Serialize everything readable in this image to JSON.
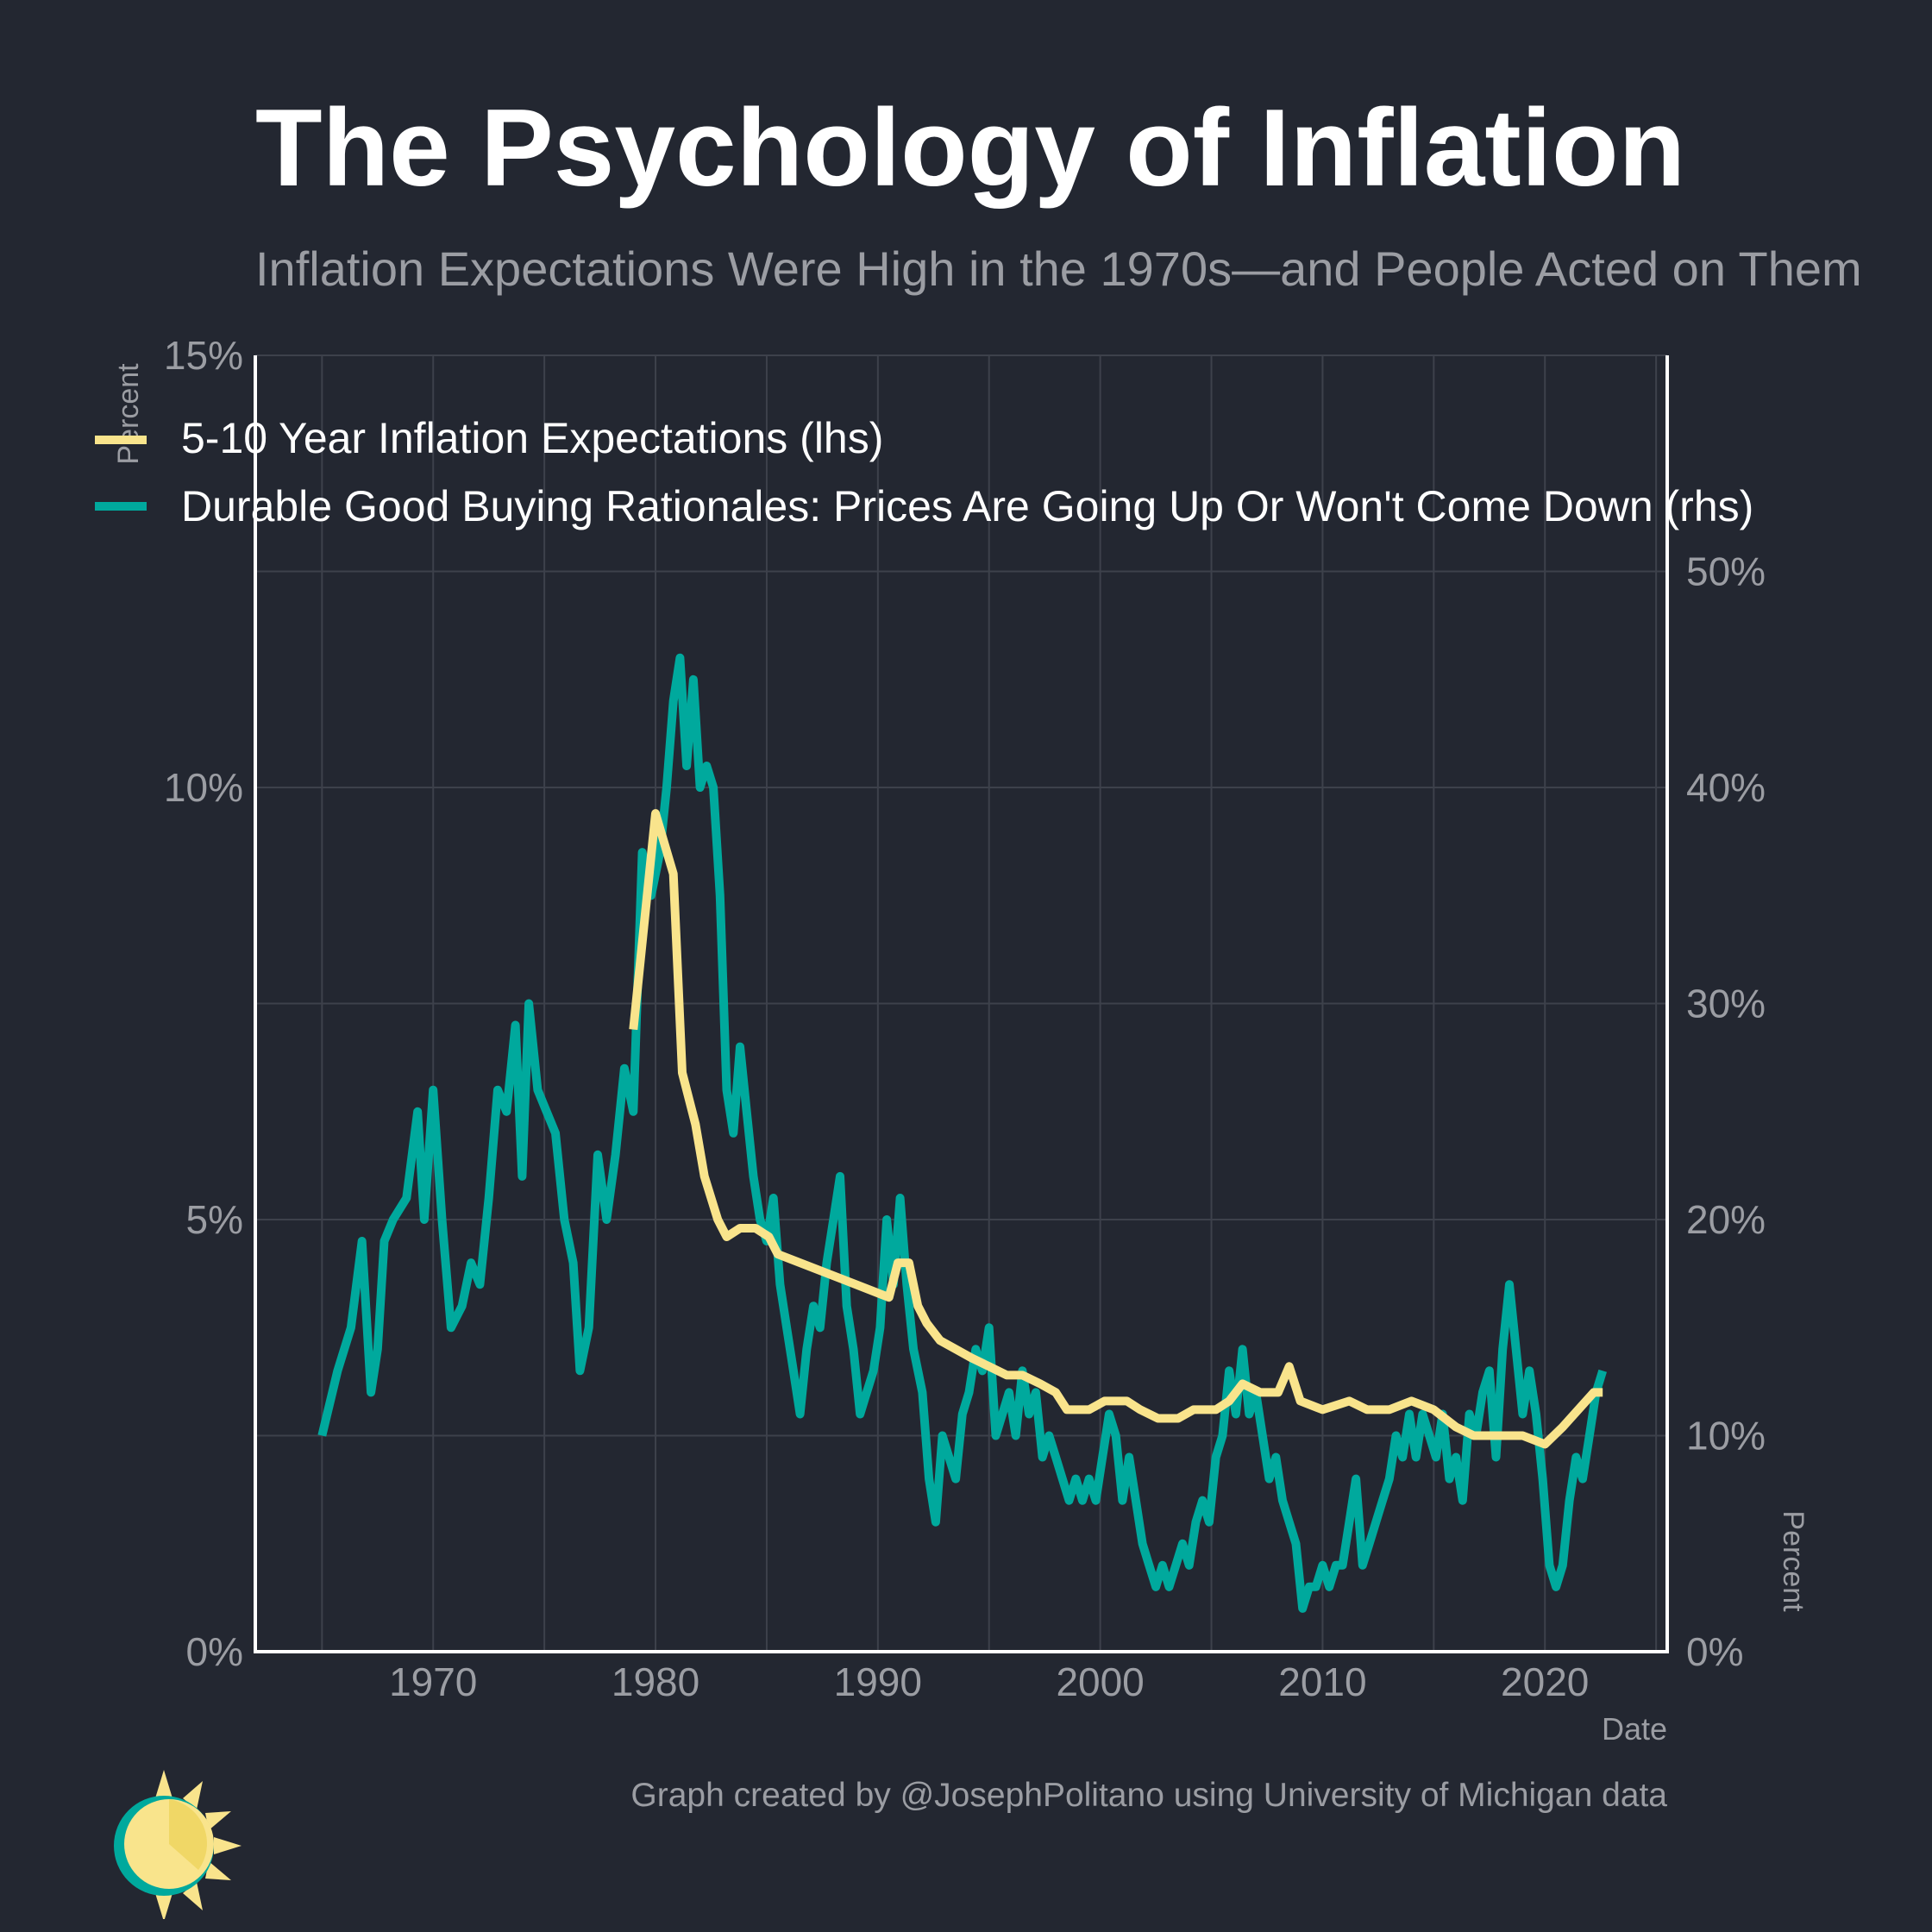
{
  "header": {
    "title": "The Psychology of Inflation",
    "subtitle": "Inflation Expectations Were High in the 1970s—and People Acted on Them"
  },
  "caption": "Graph created by @JosephPolitano using University of Michigan data",
  "colors": {
    "background": "#232731",
    "expectations": "#f9e48c",
    "durable": "#00a99d",
    "grid": "#3d414b",
    "axis": "#ffffff",
    "muted_text": "#9b9da3"
  },
  "chart_data": {
    "type": "line",
    "title": "The Psychology of Inflation",
    "subtitle": "Inflation Expectations Were High in the 1970s—and People Acted on Them",
    "xlabel": "Date",
    "ylabel_left": "Percent",
    "ylabel_right": "Percent",
    "xlim": [
      1962,
      2025.5
    ],
    "x_ticks": [
      1970,
      1980,
      1990,
      2000,
      2010,
      2020
    ],
    "y_left": {
      "lim": [
        0,
        15
      ],
      "ticks": [
        0,
        5,
        10,
        15
      ],
      "tick_labels": [
        "0%",
        "5%",
        "10%",
        "15%"
      ]
    },
    "y_right": {
      "lim": [
        0,
        60
      ],
      "ticks": [
        0,
        10,
        20,
        30,
        40,
        50
      ],
      "tick_labels": [
        "0%",
        "10%",
        "20%",
        "30%",
        "40%",
        "50%"
      ]
    },
    "grid": true,
    "legend_position": "top-left",
    "series": [
      {
        "name": "5-10 Year Inflation Expectations (lhs)",
        "axis": "left",
        "color": "#f9e48c",
        "points": [
          [
            1979.0,
            7.2
          ],
          [
            1980.0,
            9.7
          ],
          [
            1980.8,
            9.0
          ],
          [
            1981.2,
            6.7
          ],
          [
            1981.8,
            6.1
          ],
          [
            1982.2,
            5.5
          ],
          [
            1982.8,
            5.0
          ],
          [
            1983.2,
            4.8
          ],
          [
            1983.8,
            4.9
          ],
          [
            1984.5,
            4.9
          ],
          [
            1985.1,
            4.8
          ],
          [
            1985.5,
            4.6
          ],
          [
            1986.5,
            4.5
          ],
          [
            1988.5,
            4.3
          ],
          [
            1990.5,
            4.1
          ],
          [
            1990.9,
            4.5
          ],
          [
            1991.4,
            4.5
          ],
          [
            1991.8,
            4.0
          ],
          [
            1992.2,
            3.8
          ],
          [
            1992.8,
            3.6
          ],
          [
            1993.5,
            3.5
          ],
          [
            1994.2,
            3.4
          ],
          [
            1995.0,
            3.3
          ],
          [
            1995.8,
            3.2
          ],
          [
            1996.5,
            3.2
          ],
          [
            1997.3,
            3.1
          ],
          [
            1998.0,
            3.0
          ],
          [
            1998.5,
            2.8
          ],
          [
            1999.5,
            2.8
          ],
          [
            2000.2,
            2.9
          ],
          [
            2001.2,
            2.9
          ],
          [
            2001.8,
            2.8
          ],
          [
            2002.6,
            2.7
          ],
          [
            2003.5,
            2.7
          ],
          [
            2004.2,
            2.8
          ],
          [
            2005.2,
            2.8
          ],
          [
            2005.8,
            2.9
          ],
          [
            2006.4,
            3.1
          ],
          [
            2007.2,
            3.0
          ],
          [
            2008.0,
            3.0
          ],
          [
            2008.5,
            3.3
          ],
          [
            2009.0,
            2.9
          ],
          [
            2010.0,
            2.8
          ],
          [
            2011.2,
            2.9
          ],
          [
            2012.0,
            2.8
          ],
          [
            2013.0,
            2.8
          ],
          [
            2014.0,
            2.9
          ],
          [
            2015.0,
            2.8
          ],
          [
            2016.0,
            2.6
          ],
          [
            2016.8,
            2.5
          ],
          [
            2018.0,
            2.5
          ],
          [
            2019.0,
            2.5
          ],
          [
            2020.0,
            2.4
          ],
          [
            2020.8,
            2.6
          ],
          [
            2021.5,
            2.8
          ],
          [
            2022.2,
            3.0
          ],
          [
            2022.6,
            3.0
          ]
        ]
      },
      {
        "name": "Durable Good Buying Rationales: Prices Are Going Up Or Won't Come Down (rhs)",
        "axis": "right",
        "color": "#00a99d",
        "points": [
          [
            1965.0,
            10
          ],
          [
            1965.7,
            13
          ],
          [
            1966.3,
            15
          ],
          [
            1966.8,
            19
          ],
          [
            1967.2,
            12
          ],
          [
            1967.5,
            14
          ],
          [
            1967.8,
            19
          ],
          [
            1968.2,
            20
          ],
          [
            1968.8,
            21
          ],
          [
            1969.3,
            25
          ],
          [
            1969.6,
            20
          ],
          [
            1970.0,
            26
          ],
          [
            1970.4,
            20
          ],
          [
            1970.8,
            15
          ],
          [
            1971.3,
            16
          ],
          [
            1971.7,
            18
          ],
          [
            1972.1,
            17
          ],
          [
            1972.5,
            21
          ],
          [
            1972.9,
            26
          ],
          [
            1973.3,
            25
          ],
          [
            1973.7,
            29
          ],
          [
            1974.0,
            22
          ],
          [
            1974.3,
            30
          ],
          [
            1974.7,
            26
          ],
          [
            1975.1,
            25
          ],
          [
            1975.5,
            24
          ],
          [
            1975.9,
            20
          ],
          [
            1976.3,
            18
          ],
          [
            1976.6,
            13
          ],
          [
            1977.0,
            15
          ],
          [
            1977.4,
            23
          ],
          [
            1977.8,
            20
          ],
          [
            1978.2,
            23
          ],
          [
            1978.6,
            27
          ],
          [
            1979.0,
            25
          ],
          [
            1979.4,
            37
          ],
          [
            1979.8,
            35
          ],
          [
            1980.2,
            37
          ],
          [
            1980.5,
            40
          ],
          [
            1980.8,
            44
          ],
          [
            1981.1,
            46
          ],
          [
            1981.4,
            41
          ],
          [
            1981.7,
            45
          ],
          [
            1982.0,
            40
          ],
          [
            1982.3,
            41
          ],
          [
            1982.6,
            40
          ],
          [
            1982.9,
            35
          ],
          [
            1983.2,
            26
          ],
          [
            1983.5,
            24
          ],
          [
            1983.8,
            28
          ],
          [
            1984.1,
            25
          ],
          [
            1984.4,
            22
          ],
          [
            1984.7,
            20
          ],
          [
            1985.0,
            19
          ],
          [
            1985.3,
            21
          ],
          [
            1985.6,
            17
          ],
          [
            1985.9,
            15
          ],
          [
            1986.2,
            13
          ],
          [
            1986.5,
            11
          ],
          [
            1986.8,
            14
          ],
          [
            1987.1,
            16
          ],
          [
            1987.4,
            15
          ],
          [
            1987.7,
            18
          ],
          [
            1988.0,
            20
          ],
          [
            1988.3,
            22
          ],
          [
            1988.6,
            16
          ],
          [
            1988.9,
            14
          ],
          [
            1989.2,
            11
          ],
          [
            1989.5,
            12
          ],
          [
            1989.8,
            13
          ],
          [
            1990.1,
            15
          ],
          [
            1990.4,
            20
          ],
          [
            1990.7,
            17
          ],
          [
            1991.0,
            21
          ],
          [
            1991.3,
            17
          ],
          [
            1991.6,
            14
          ],
          [
            1992.0,
            12
          ],
          [
            1992.3,
            8
          ],
          [
            1992.6,
            6
          ],
          [
            1992.9,
            10
          ],
          [
            1993.2,
            9
          ],
          [
            1993.5,
            8
          ],
          [
            1993.8,
            11
          ],
          [
            1994.1,
            12
          ],
          [
            1994.4,
            14
          ],
          [
            1994.7,
            13
          ],
          [
            1995.0,
            15
          ],
          [
            1995.3,
            10
          ],
          [
            1995.6,
            11
          ],
          [
            1995.9,
            12
          ],
          [
            1996.2,
            10
          ],
          [
            1996.5,
            13
          ],
          [
            1996.8,
            11
          ],
          [
            1997.1,
            12
          ],
          [
            1997.4,
            9
          ],
          [
            1997.7,
            10
          ],
          [
            1998.0,
            9
          ],
          [
            1998.3,
            8
          ],
          [
            1998.6,
            7
          ],
          [
            1998.9,
            8
          ],
          [
            1999.2,
            7
          ],
          [
            1999.5,
            8
          ],
          [
            1999.8,
            7
          ],
          [
            2000.1,
            9
          ],
          [
            2000.4,
            11
          ],
          [
            2000.7,
            10
          ],
          [
            2001.0,
            7
          ],
          [
            2001.3,
            9
          ],
          [
            2001.6,
            7
          ],
          [
            2001.9,
            5
          ],
          [
            2002.2,
            4
          ],
          [
            2002.5,
            3
          ],
          [
            2002.8,
            4
          ],
          [
            2003.1,
            3
          ],
          [
            2003.4,
            4
          ],
          [
            2003.7,
            5
          ],
          [
            2004.0,
            4
          ],
          [
            2004.3,
            6
          ],
          [
            2004.6,
            7
          ],
          [
            2004.9,
            6
          ],
          [
            2005.2,
            9
          ],
          [
            2005.5,
            10
          ],
          [
            2005.8,
            13
          ],
          [
            2006.1,
            11
          ],
          [
            2006.4,
            14
          ],
          [
            2006.7,
            11
          ],
          [
            2007.0,
            12
          ],
          [
            2007.3,
            10
          ],
          [
            2007.6,
            8
          ],
          [
            2007.9,
            9
          ],
          [
            2008.2,
            7
          ],
          [
            2008.5,
            6
          ],
          [
            2008.8,
            5
          ],
          [
            2009.1,
            2
          ],
          [
            2009.4,
            3
          ],
          [
            2009.7,
            3
          ],
          [
            2010.0,
            4
          ],
          [
            2010.3,
            3
          ],
          [
            2010.6,
            4
          ],
          [
            2010.9,
            4
          ],
          [
            2011.2,
            6
          ],
          [
            2011.5,
            8
          ],
          [
            2011.8,
            4
          ],
          [
            2012.1,
            5
          ],
          [
            2012.4,
            6
          ],
          [
            2012.7,
            7
          ],
          [
            2013.0,
            8
          ],
          [
            2013.3,
            10
          ],
          [
            2013.6,
            9
          ],
          [
            2013.9,
            11
          ],
          [
            2014.2,
            9
          ],
          [
            2014.5,
            11
          ],
          [
            2014.8,
            10
          ],
          [
            2015.1,
            9
          ],
          [
            2015.4,
            11
          ],
          [
            2015.7,
            8
          ],
          [
            2016.0,
            9
          ],
          [
            2016.3,
            7
          ],
          [
            2016.6,
            11
          ],
          [
            2016.9,
            10
          ],
          [
            2017.2,
            12
          ],
          [
            2017.5,
            13
          ],
          [
            2017.8,
            9
          ],
          [
            2018.1,
            14
          ],
          [
            2018.4,
            17
          ],
          [
            2018.7,
            14
          ],
          [
            2019.0,
            11
          ],
          [
            2019.3,
            13
          ],
          [
            2019.6,
            11
          ],
          [
            2019.9,
            8
          ],
          [
            2020.2,
            4
          ],
          [
            2020.5,
            3
          ],
          [
            2020.8,
            4
          ],
          [
            2021.1,
            7
          ],
          [
            2021.4,
            9
          ],
          [
            2021.7,
            8
          ],
          [
            2022.0,
            10
          ],
          [
            2022.3,
            12
          ],
          [
            2022.6,
            13
          ]
        ]
      }
    ]
  }
}
